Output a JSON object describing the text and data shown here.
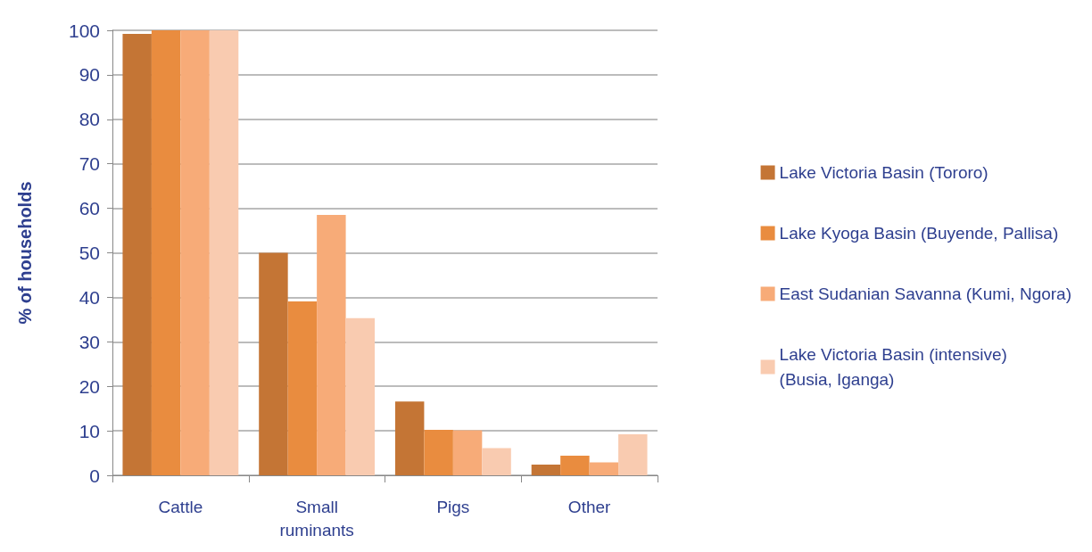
{
  "chart_data": {
    "type": "bar",
    "ylabel": "% of households",
    "categories": [
      "Cattle",
      "Small\nruminants",
      "Pigs",
      "Other"
    ],
    "series": [
      {
        "name": "Lake Victoria Basin (Tororo)",
        "color": "#c47535",
        "values": [
          99.2,
          50,
          16.6,
          2.4
        ]
      },
      {
        "name": "Lake Kyoga Basin (Buyende, Pallisa)",
        "color": "#e98c3f",
        "values": [
          100,
          39.1,
          10.2,
          4.4
        ]
      },
      {
        "name": "East Sudanian Savanna (Kumi, Ngora)",
        "color": "#f7ab78",
        "values": [
          100,
          58.5,
          10.1,
          2.9
        ]
      },
      {
        "name": "Lake Victoria Basin (intensive) (Busia, Iganga)",
        "color": "#f9cbb0",
        "values": [
          100,
          35.3,
          6.1,
          9.2
        ]
      }
    ],
    "ylim": [
      0,
      100
    ],
    "yticks": [
      0,
      10,
      20,
      30,
      40,
      50,
      60,
      70,
      80,
      90,
      100
    ],
    "grid": "y",
    "legend": "right"
  }
}
